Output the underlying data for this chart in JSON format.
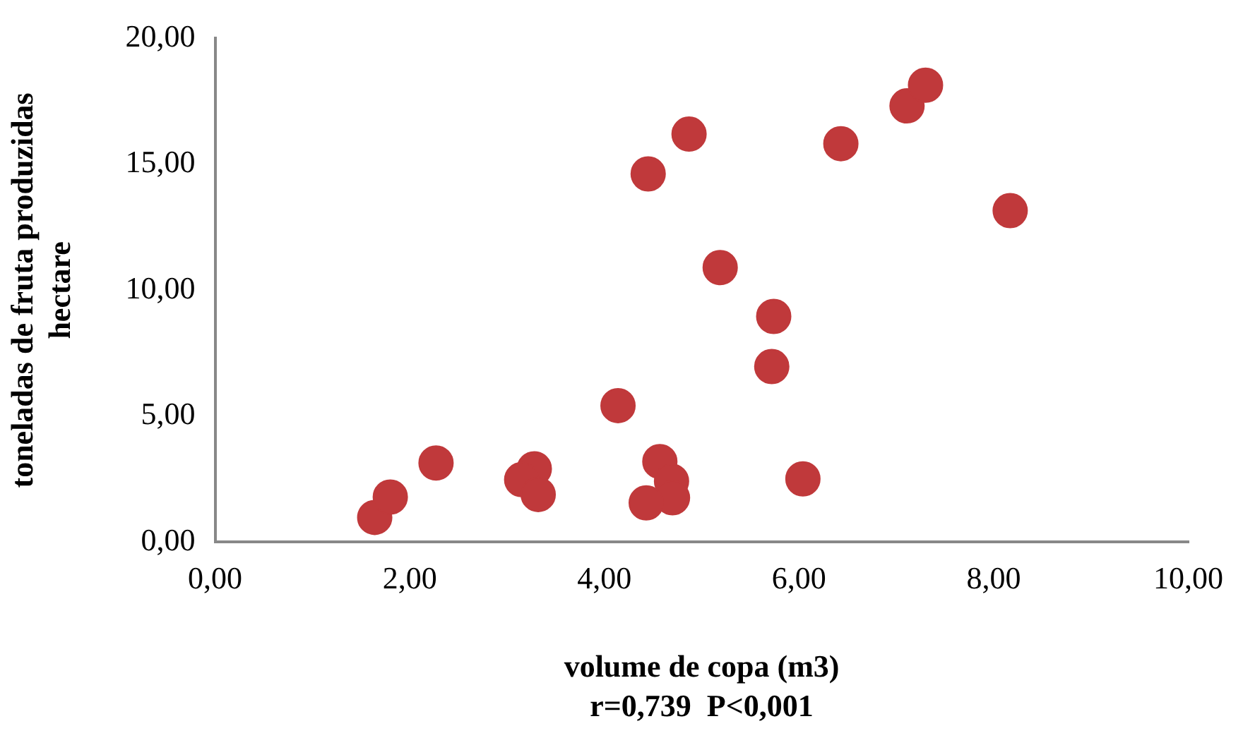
{
  "chart_data": {
    "type": "scatter",
    "xlabel": "volume de copa (m3)",
    "ylabel": "toneladas de fruta produzidas hectare",
    "annotations": [
      "r=0,739  P<0,001"
    ],
    "xlim": [
      0,
      10
    ],
    "ylim": [
      0,
      20
    ],
    "xticks": [
      {
        "value": 0,
        "label": "0,00"
      },
      {
        "value": 2,
        "label": "2,00"
      },
      {
        "value": 4,
        "label": "4,00"
      },
      {
        "value": 6,
        "label": "6,00"
      },
      {
        "value": 8,
        "label": "8,00"
      },
      {
        "value": 10,
        "label": "10,00"
      }
    ],
    "yticks": [
      {
        "value": 0,
        "label": "0,00"
      },
      {
        "value": 5,
        "label": "5,00"
      },
      {
        "value": 10,
        "label": "10,00"
      },
      {
        "value": 15,
        "label": "15,00"
      },
      {
        "value": 20,
        "label": "20,00"
      }
    ],
    "grid": false,
    "legend": false,
    "marker": "circle",
    "series": [
      {
        "color": "#c0393b",
        "x": [
          1.64,
          1.8,
          2.27,
          3.28,
          3.15,
          3.32,
          4.14,
          4.45,
          4.87,
          4.57,
          4.69,
          4.7,
          4.43,
          5.19,
          5.74,
          5.72,
          6.04,
          6.43,
          7.11,
          7.3,
          8.17
        ],
        "values": [
          0.98,
          1.79,
          3.14,
          2.91,
          2.48,
          1.89,
          5.42,
          14.62,
          16.2,
          3.2,
          2.42,
          1.76,
          1.56,
          10.9,
          8.96,
          6.97,
          2.51,
          15.82,
          17.32,
          18.14,
          13.16
        ]
      }
    ]
  }
}
